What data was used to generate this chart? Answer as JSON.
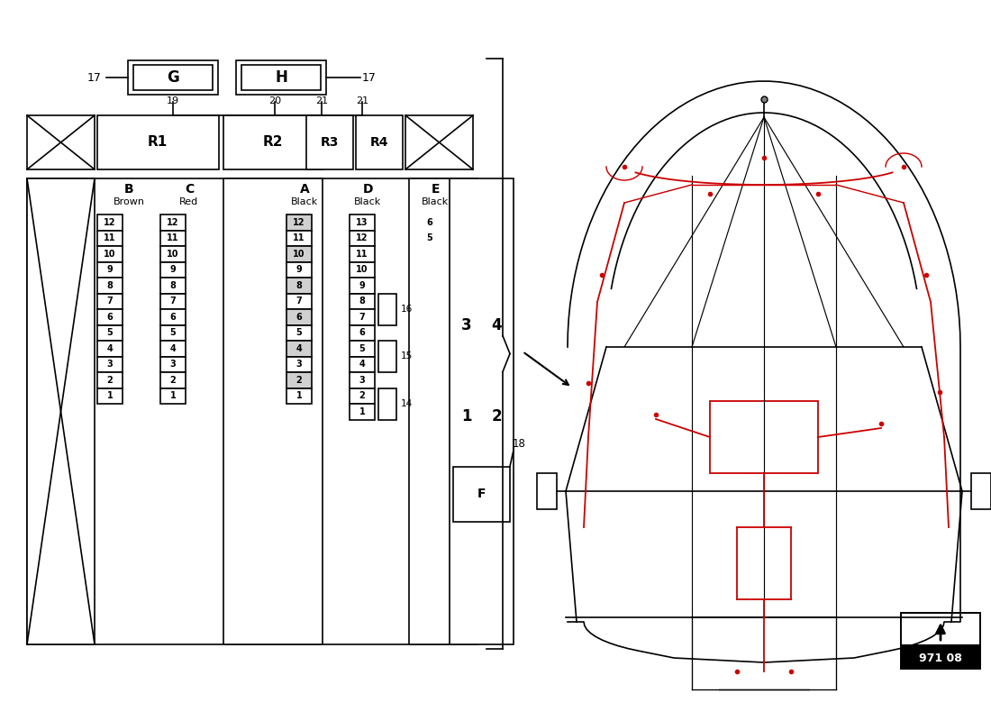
{
  "bg_color": "#ffffff",
  "lc": "#000000",
  "rc": "#cc0000",
  "page_num": "971 08",
  "col_B_pins": [
    12,
    11,
    10,
    9,
    8,
    7,
    6,
    5,
    4,
    3,
    2,
    1
  ],
  "col_C_pins": [
    12,
    11,
    10,
    9,
    8,
    7,
    6,
    5,
    4,
    3,
    2,
    1
  ],
  "col_A_pins": [
    12,
    11,
    10,
    9,
    8,
    7,
    6,
    5,
    4,
    3,
    2,
    1
  ],
  "col_D_pins": [
    13,
    12,
    11,
    10,
    9,
    8,
    7,
    6,
    5,
    4,
    3,
    2,
    1
  ],
  "col_E_pins": [
    6,
    5
  ],
  "G_label": "G",
  "H_label": "H",
  "num17_L": "17",
  "num17_R": "17",
  "num19": "19",
  "num20": "20",
  "num21a": "21",
  "num21b": "21",
  "R1": "R1",
  "R2": "R2",
  "R3": "R3",
  "R4": "R4",
  "B_label": "B",
  "B_sub": "Brown",
  "C_label": "C",
  "C_sub": "Red",
  "A_label": "A",
  "A_sub": "Black",
  "D_label": "D",
  "D_sub": "Black",
  "E_label": "E",
  "E_sub": "Black",
  "lbl16": "16",
  "lbl15": "15",
  "lbl14": "14",
  "lbl3": "3",
  "lbl4": "4",
  "lbl1": "1",
  "lbl2": "2",
  "lblF": "F",
  "lbl18": "18"
}
